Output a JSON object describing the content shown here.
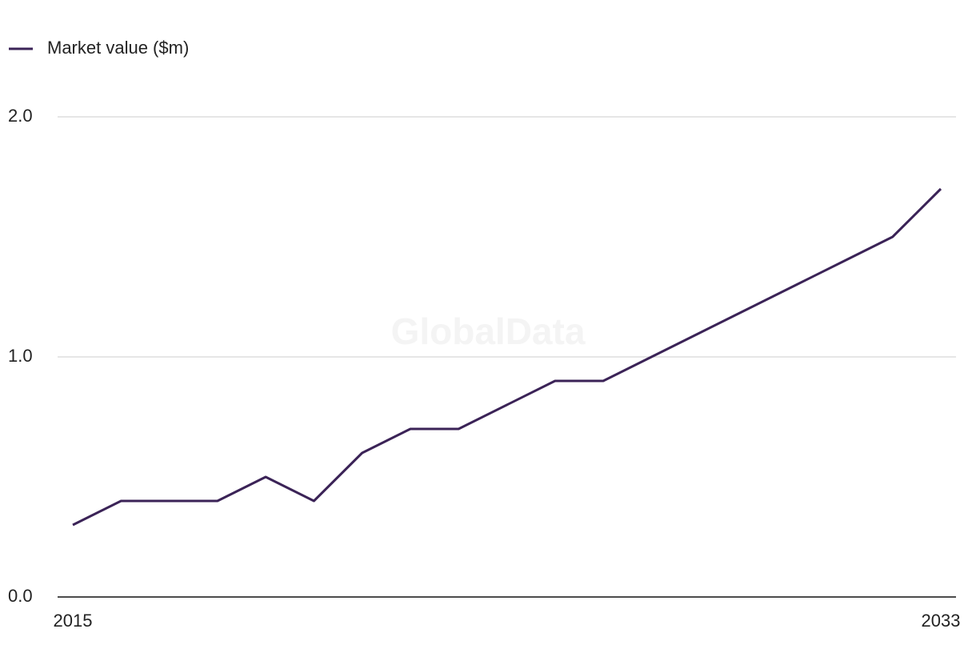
{
  "chart_data": {
    "type": "line",
    "legend": "top-left",
    "watermark": "GlobalData",
    "x": [
      2015,
      2016,
      2017,
      2018,
      2019,
      2020,
      2021,
      2022,
      2023,
      2024,
      2025,
      2026,
      2027,
      2028,
      2029,
      2030,
      2031,
      2032,
      2033
    ],
    "xlim": [
      2015,
      2033
    ],
    "xticks": [
      2015,
      2033
    ],
    "series": [
      {
        "name": "Market value ($m)",
        "color": "#3b2357",
        "values": [
          0.3,
          0.4,
          0.4,
          0.4,
          0.5,
          0.4,
          0.6,
          0.7,
          0.7,
          0.8,
          0.9,
          0.9,
          1.0,
          1.1,
          1.2,
          1.3,
          1.4,
          1.5,
          1.7
        ]
      }
    ],
    "ylim": [
      0,
      2
    ],
    "yticks": [
      {
        "value": 0,
        "label": "0.0"
      },
      {
        "value": 1,
        "label": "1.0"
      },
      {
        "value": 2,
        "label": "2.0"
      }
    ],
    "grid": true
  }
}
